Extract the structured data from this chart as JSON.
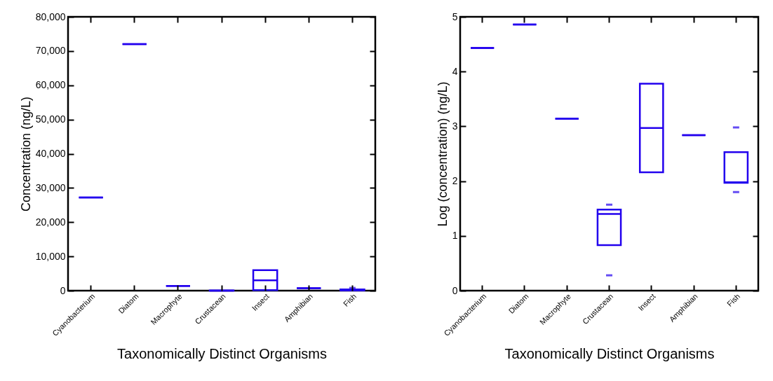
{
  "chart_data": [
    {
      "type": "box",
      "xlabel": "Taxonomically Distinct Organisms",
      "ylabel": "Concentration (ng/L)",
      "categories": [
        "Cyanobacterium",
        "Diatom",
        "Macrophyte",
        "Crustacean",
        "Insect",
        "Amphibian",
        "Fish"
      ],
      "ylim": [
        0,
        80000
      ],
      "yticks": [
        0,
        {
          "value": 10000,
          "label": "10,000"
        },
        {
          "value": 20000,
          "label": "20,000"
        },
        {
          "value": 30000,
          "label": "30,000"
        },
        {
          "value": 40000,
          "label": "40,000"
        },
        {
          "value": 50000,
          "label": "50,000"
        },
        {
          "value": 60000,
          "label": "60,000"
        },
        {
          "value": 70000,
          "label": "70,000"
        },
        {
          "value": 80000,
          "label": "80,000"
        }
      ],
      "series": [
        {
          "color": "#2200ee",
          "boxes": [
            {
              "low": 27200,
              "q1": 27200,
              "median": 27200,
              "q3": 27200,
              "high": 27200
            },
            {
              "low": 72000,
              "q1": 72000,
              "median": 72000,
              "q3": 72000,
              "high": 72000
            },
            {
              "low": 1400,
              "q1": 1400,
              "median": 1400,
              "q3": 1400,
              "high": 1400
            },
            {
              "low": 7,
              "q1": 7,
              "median": 25,
              "q3": 30,
              "high": 30
            },
            {
              "low": 150,
              "q1": 150,
              "median": 3000,
              "q3": 6000,
              "high": 6000
            },
            {
              "low": 700,
              "q1": 700,
              "median": 700,
              "q3": 700,
              "high": 700
            },
            {
              "low": 100,
              "q1": 100,
              "median": 100,
              "q3": 340,
              "high": 340,
              "outliers": [
                800
              ]
            }
          ]
        }
      ]
    },
    {
      "type": "box",
      "xlabel": "Taxonomically Distinct Organisms",
      "ylabel": "Log (concentration) (ng/L)",
      "categories": [
        "Cyanobacterium",
        "Diatom",
        "Macrophyte",
        "Crustacean",
        "Insect",
        "Amphibian",
        "Fish"
      ],
      "ylim": [
        0,
        5
      ],
      "yticks": [
        0,
        1,
        2,
        3,
        4,
        5
      ],
      "series": [
        {
          "color": "#2200ee",
          "boxes": [
            {
              "low": 4.43,
              "q1": 4.43,
              "median": 4.43,
              "q3": 4.43,
              "high": 4.43
            },
            {
              "low": 4.86,
              "q1": 4.86,
              "median": 4.86,
              "q3": 4.86,
              "high": 4.86
            },
            {
              "low": 3.14,
              "q1": 3.14,
              "median": 3.14,
              "q3": 3.14,
              "high": 3.14
            },
            {
              "low": 0.83,
              "q1": 0.83,
              "median": 1.4,
              "q3": 1.48,
              "high": 1.48,
              "outliers": [
                0.28,
                1.57
              ]
            },
            {
              "low": 2.16,
              "q1": 2.16,
              "median": 2.97,
              "q3": 3.78,
              "high": 3.78
            },
            {
              "low": 2.84,
              "q1": 2.84,
              "median": 2.84,
              "q3": 2.84,
              "high": 2.84
            },
            {
              "low": 1.97,
              "q1": 1.97,
              "median": 1.98,
              "q3": 2.53,
              "high": 2.53,
              "outliers": [
                1.8,
                2.98
              ]
            }
          ]
        }
      ]
    }
  ]
}
